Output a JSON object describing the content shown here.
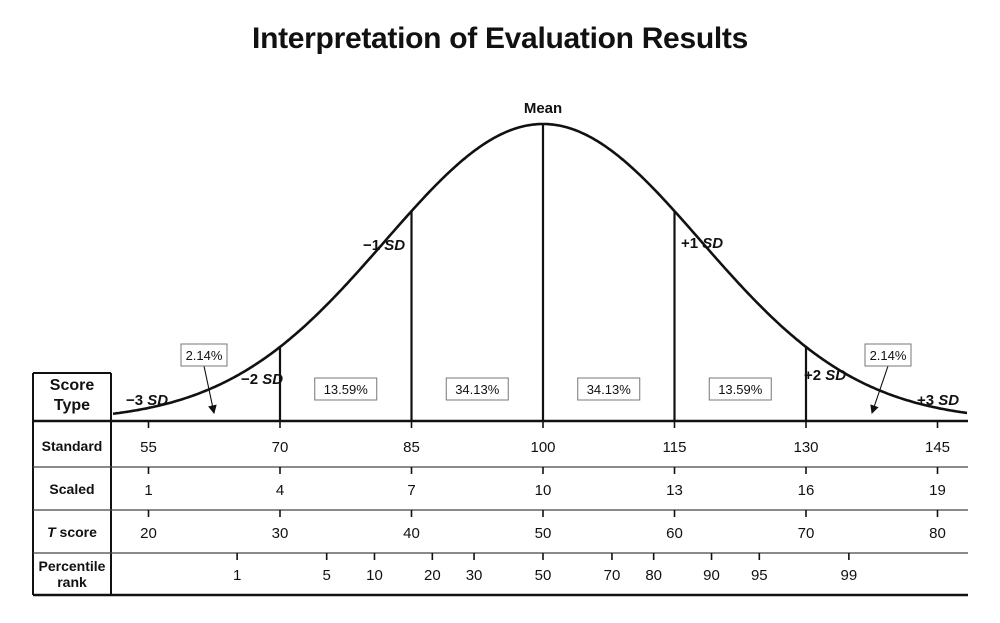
{
  "title": "Interpretation of Evaluation Results",
  "curve": {
    "mean_label": "Mean",
    "sd_labels": [
      {
        "id": "m3",
        "sign": "−3",
        "unit": "SD"
      },
      {
        "id": "m2",
        "sign": "−2",
        "unit": "SD"
      },
      {
        "id": "m1",
        "sign": "−1",
        "unit": "SD"
      },
      {
        "id": "p1",
        "sign": "+1",
        "unit": "SD"
      },
      {
        "id": "p2",
        "sign": "+2",
        "unit": "SD"
      },
      {
        "id": "p3",
        "sign": "+3",
        "unit": "SD"
      }
    ],
    "region_percents": [
      "13.59%",
      "34.13%",
      "34.13%",
      "13.59%"
    ],
    "tail_percents": [
      "2.14%",
      "2.14%"
    ]
  },
  "table": {
    "score_type_label": "Score\nType",
    "rows": [
      {
        "id": "standard",
        "label": "Standard",
        "values": [
          "55",
          "70",
          "85",
          "100",
          "115",
          "130",
          "145"
        ]
      },
      {
        "id": "scaled",
        "label": "Scaled",
        "values": [
          "1",
          "4",
          "7",
          "10",
          "13",
          "16",
          "19"
        ]
      },
      {
        "id": "tscore",
        "label": "T score",
        "label_italic": "T",
        "label_rest": " score",
        "values": [
          "20",
          "30",
          "40",
          "50",
          "60",
          "70",
          "80"
        ]
      }
    ],
    "percentile": {
      "label_line1": "Percentile",
      "label_line2": "rank",
      "ranks": [
        {
          "label": "1",
          "z": -2.326
        },
        {
          "label": "5",
          "z": -1.645
        },
        {
          "label": "10",
          "z": -1.2816
        },
        {
          "label": "20",
          "z": -0.8416
        },
        {
          "label": "30",
          "z": -0.5244
        },
        {
          "label": "50",
          "z": 0
        },
        {
          "label": "70",
          "z": 0.5244
        },
        {
          "label": "80",
          "z": 0.8416
        },
        {
          "label": "90",
          "z": 1.2816
        },
        {
          "label": "95",
          "z": 1.645
        },
        {
          "label": "99",
          "z": 2.326
        }
      ]
    }
  }
}
